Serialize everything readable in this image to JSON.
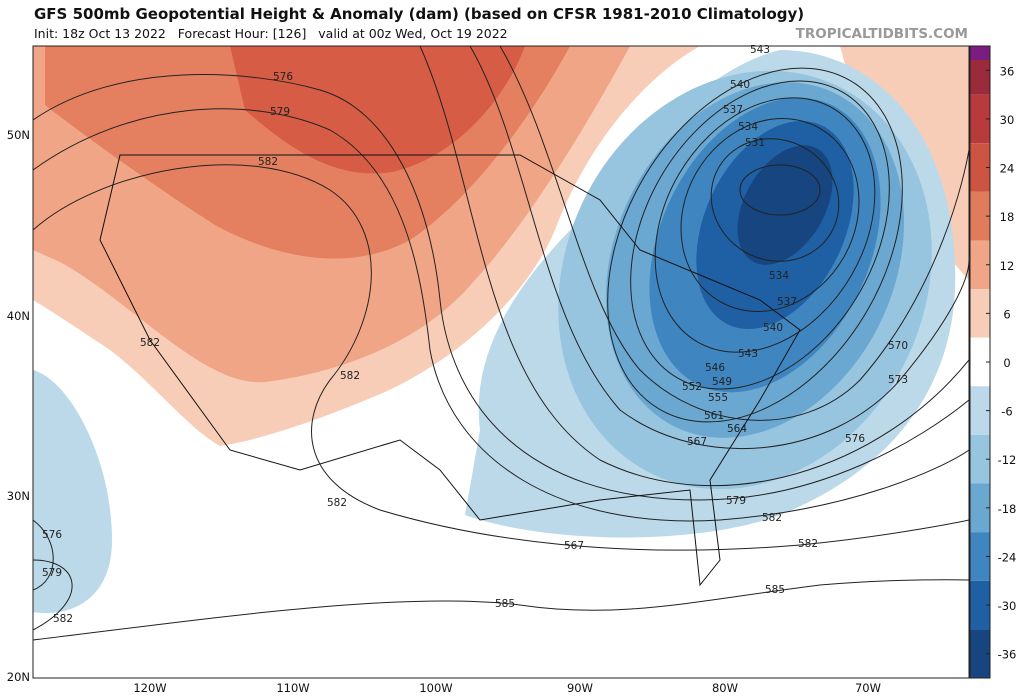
{
  "header": {
    "title": "GFS 500mb Geopotential Height & Anomaly (dam) (based on CFSR 1981-2010 Climatology)",
    "subtitle": "Init: 18z Oct 13 2022   Forecast Hour: [126]   valid at 00z Wed, Oct 19 2022",
    "site": "TROPICALTIDBITS.COM"
  },
  "map": {
    "lat_labels": [
      "50N",
      "40N",
      "30N",
      "20N"
    ],
    "lon_labels": [
      "120W",
      "110W",
      "100W",
      "90W",
      "80W",
      "70W"
    ],
    "colorbar_ticks": [
      36,
      30,
      24,
      18,
      12,
      6,
      0,
      -6,
      -12,
      -18,
      -24,
      -30,
      -36
    ],
    "contour_labels": [
      576,
      579,
      582,
      582,
      582,
      582,
      576,
      579,
      582,
      543,
      540,
      537,
      534,
      531,
      534,
      537,
      540,
      543,
      546,
      549,
      552,
      555,
      561,
      564,
      567,
      567,
      570,
      573,
      576,
      579,
      582,
      582,
      585,
      585
    ]
  }
}
